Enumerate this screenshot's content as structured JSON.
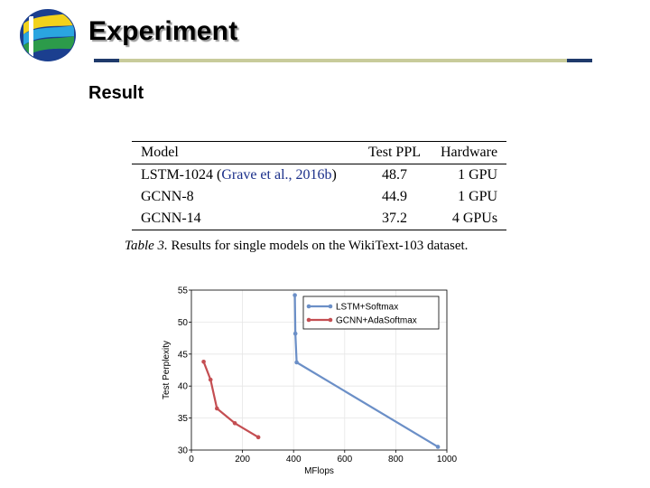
{
  "slide": {
    "title": "Experiment",
    "subtitle": "Result"
  },
  "table": {
    "headers": [
      "Model",
      "Test PPL",
      "Hardware"
    ],
    "rows": [
      {
        "model": "LSTM-1024 (",
        "citation": "Grave et al., 2016b",
        "model_suffix": ")",
        "ppl": "48.7",
        "hardware": "1 GPU"
      },
      {
        "model": "GCNN-8",
        "citation": "",
        "model_suffix": "",
        "ppl": "44.9",
        "hardware": "1 GPU"
      },
      {
        "model": "GCNN-14",
        "citation": "",
        "model_suffix": "",
        "ppl": "37.2",
        "hardware": "4 GPUs"
      }
    ],
    "caption_label": "Table 3.",
    "caption_text": " Results for single models on the WikiText-103 dataset."
  },
  "chart_data": {
    "type": "line",
    "title": "",
    "xlabel": "MFlops",
    "ylabel": "Test Perplexity",
    "xlim": [
      0,
      1000
    ],
    "ylim": [
      30,
      55
    ],
    "xticks": [
      0,
      200,
      400,
      600,
      800,
      1000
    ],
    "yticks": [
      30,
      35,
      40,
      45,
      50,
      55
    ],
    "grid": true,
    "legend": "top-right",
    "series": [
      {
        "name": "LSTM+Softmax",
        "color": "#6b8fc7",
        "x": [
          405,
          407,
          412,
          965
        ],
        "y": [
          54.2,
          48.2,
          43.7,
          30.5
        ]
      },
      {
        "name": "GCNN+AdaSoftmax",
        "color": "#c44e52",
        "x": [
          48,
          75,
          100,
          170,
          262
        ],
        "y": [
          43.8,
          41.0,
          36.5,
          34.2,
          32.0
        ]
      }
    ]
  }
}
